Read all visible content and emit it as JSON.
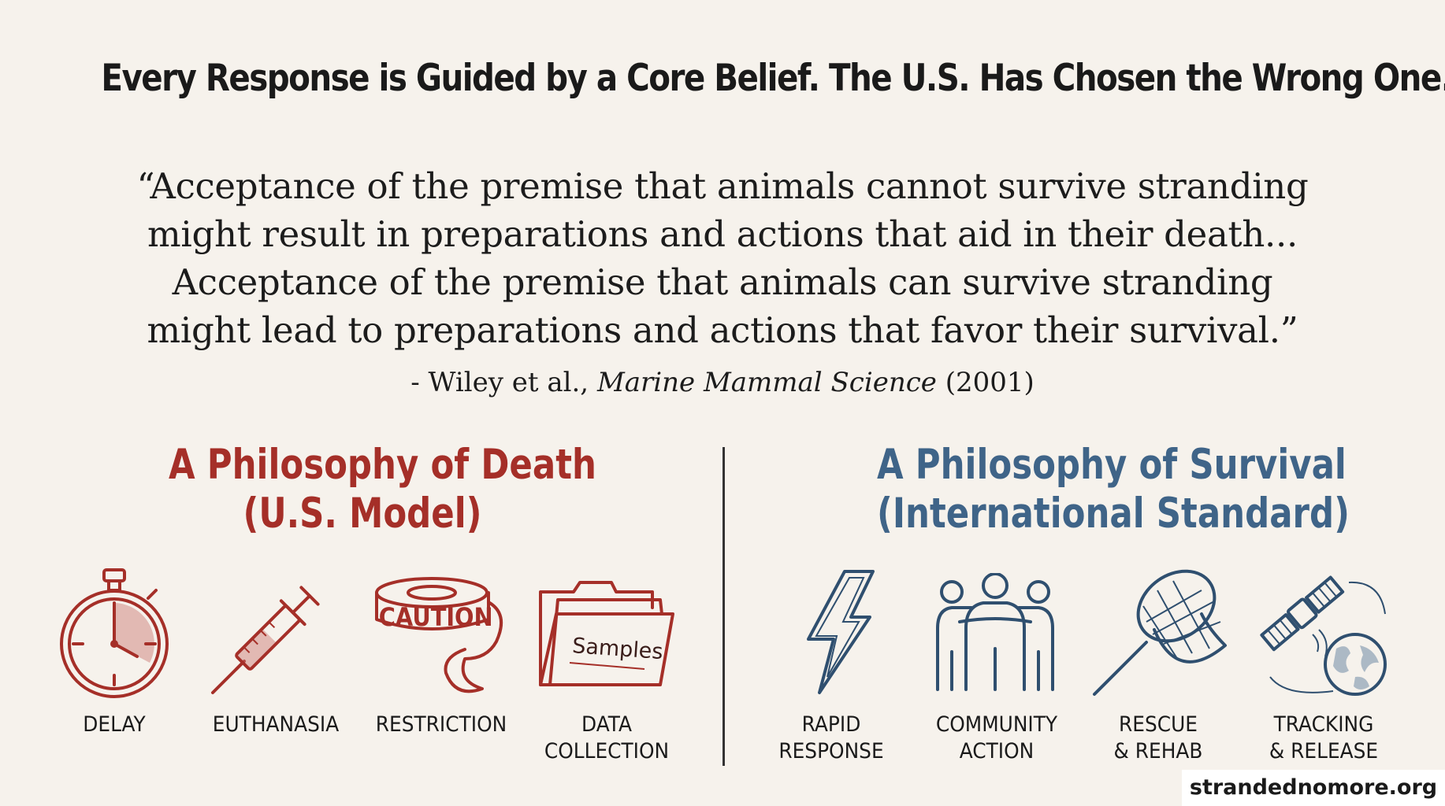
{
  "title": "Every Response is Guided by a Core Belief. The U.S. Has Chosen the Wrong One.",
  "quote": {
    "lines": [
      "“Acceptance of the premise that animals cannot survive stranding",
      "might result in preparations and actions that aid in their death...",
      "Acceptance of the premise that animals can survive stranding",
      "might lead to preparations and actions that favor their survival.”"
    ],
    "citation_prefix": "- Wiley et al., ",
    "citation_journal": "Marine Mammal Science",
    "citation_year": " (2001)"
  },
  "death": {
    "heading_line1": "A Philosophy of Death",
    "heading_line2": "(U.S. Model)",
    "color": "#a52f28",
    "items": [
      {
        "icon": "stopwatch-icon",
        "line1": "DELAY",
        "line2": ""
      },
      {
        "icon": "syringe-icon",
        "line1": "EUTHANASIA",
        "line2": ""
      },
      {
        "icon": "caution-tape-icon",
        "icon_text": "CAUTION",
        "line1": "RESTRICTION",
        "line2": ""
      },
      {
        "icon": "folder-icon",
        "icon_text": "Samples",
        "line1": "DATA",
        "line2": "COLLECTION"
      }
    ]
  },
  "survival": {
    "heading_line1": "A Philosophy of Survival",
    "heading_line2": "(International Standard)",
    "color": "#3f6488",
    "items": [
      {
        "icon": "lightning-bolt-icon",
        "line1": "RAPID",
        "line2": "RESPONSE"
      },
      {
        "icon": "people-group-icon",
        "line1": "COMMUNITY",
        "line2": "ACTION"
      },
      {
        "icon": "net-icon",
        "line1": "RESCUE",
        "line2": "& REHAB"
      },
      {
        "icon": "satellite-globe-icon",
        "line1": "TRACKING",
        "line2": "& RELEASE"
      }
    ]
  },
  "website": "strandednomore.org"
}
